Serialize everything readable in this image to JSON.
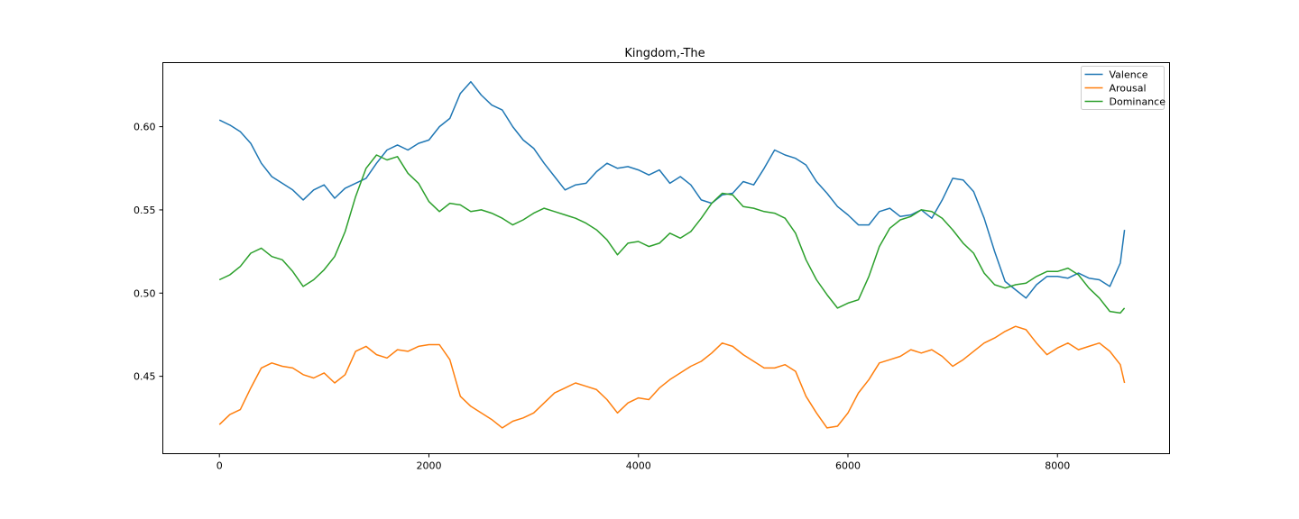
{
  "chart_data": {
    "type": "line",
    "title": "Kingdom,-The",
    "xlabel": "",
    "ylabel": "",
    "xlim": [
      -540,
      9070
    ],
    "ylim": [
      0.4035,
      0.6385
    ],
    "x_ticks": [
      0,
      2000,
      4000,
      6000,
      8000
    ],
    "x_tick_labels": [
      "0",
      "2000",
      "4000",
      "6000",
      "8000"
    ],
    "y_ticks": [
      0.45,
      0.5,
      0.55,
      0.6
    ],
    "y_tick_labels": [
      "0.45",
      "0.50",
      "0.55",
      "0.60"
    ],
    "grid": false,
    "legend_position": "top-right",
    "series": [
      {
        "name": "Valence",
        "color": "#1f77b4",
        "x": [
          0,
          100,
          200,
          300,
          400,
          500,
          600,
          700,
          800,
          900,
          1000,
          1100,
          1200,
          1300,
          1400,
          1500,
          1600,
          1700,
          1800,
          1900,
          2000,
          2100,
          2200,
          2300,
          2400,
          2500,
          2600,
          2700,
          2800,
          2900,
          3000,
          3100,
          3200,
          3300,
          3400,
          3500,
          3600,
          3700,
          3800,
          3900,
          4000,
          4100,
          4200,
          4300,
          4400,
          4500,
          4600,
          4700,
          4800,
          4900,
          5000,
          5100,
          5200,
          5300,
          5400,
          5500,
          5600,
          5700,
          5800,
          5900,
          6000,
          6100,
          6200,
          6300,
          6400,
          6500,
          6600,
          6700,
          6800,
          6900,
          7000,
          7100,
          7200,
          7300,
          7400,
          7500,
          7600,
          7700,
          7800,
          7900,
          8000,
          8100,
          8200,
          8300,
          8400,
          8500,
          8600,
          8640
        ],
        "y": [
          0.604,
          0.601,
          0.597,
          0.59,
          0.578,
          0.57,
          0.566,
          0.562,
          0.556,
          0.562,
          0.565,
          0.557,
          0.563,
          0.566,
          0.569,
          0.578,
          0.586,
          0.589,
          0.586,
          0.59,
          0.592,
          0.6,
          0.605,
          0.62,
          0.627,
          0.619,
          0.613,
          0.61,
          0.6,
          0.592,
          0.587,
          0.578,
          0.57,
          0.562,
          0.565,
          0.566,
          0.573,
          0.578,
          0.575,
          0.576,
          0.574,
          0.571,
          0.574,
          0.566,
          0.57,
          0.565,
          0.556,
          0.554,
          0.559,
          0.56,
          0.567,
          0.565,
          0.575,
          0.586,
          0.583,
          0.581,
          0.577,
          0.567,
          0.56,
          0.552,
          0.547,
          0.541,
          0.541,
          0.549,
          0.551,
          0.546,
          0.547,
          0.55,
          0.545,
          0.556,
          0.569,
          0.568,
          0.561,
          0.545,
          0.525,
          0.507,
          0.502,
          0.497,
          0.505,
          0.51,
          0.51,
          0.509,
          0.512,
          0.509,
          0.508,
          0.504,
          0.518,
          0.538
        ]
      },
      {
        "name": "Arousal",
        "color": "#ff7f0e",
        "x": [
          0,
          100,
          200,
          300,
          400,
          500,
          600,
          700,
          800,
          900,
          1000,
          1100,
          1200,
          1300,
          1400,
          1500,
          1600,
          1700,
          1800,
          1900,
          2000,
          2100,
          2200,
          2300,
          2400,
          2500,
          2600,
          2700,
          2800,
          2900,
          3000,
          3100,
          3200,
          3300,
          3400,
          3500,
          3600,
          3700,
          3800,
          3900,
          4000,
          4100,
          4200,
          4300,
          4400,
          4500,
          4600,
          4700,
          4800,
          4900,
          5000,
          5100,
          5200,
          5300,
          5400,
          5500,
          5600,
          5700,
          5800,
          5900,
          6000,
          6100,
          6200,
          6300,
          6400,
          6500,
          6600,
          6700,
          6800,
          6900,
          7000,
          7100,
          7200,
          7300,
          7400,
          7500,
          7600,
          7700,
          7800,
          7900,
          8000,
          8100,
          8200,
          8300,
          8400,
          8500,
          8600,
          8640
        ],
        "y": [
          0.421,
          0.427,
          0.43,
          0.443,
          0.455,
          0.458,
          0.456,
          0.455,
          0.451,
          0.449,
          0.452,
          0.446,
          0.451,
          0.465,
          0.468,
          0.463,
          0.461,
          0.466,
          0.465,
          0.468,
          0.469,
          0.469,
          0.46,
          0.438,
          0.432,
          0.428,
          0.424,
          0.419,
          0.423,
          0.425,
          0.428,
          0.434,
          0.44,
          0.443,
          0.446,
          0.444,
          0.442,
          0.436,
          0.428,
          0.434,
          0.437,
          0.436,
          0.443,
          0.448,
          0.452,
          0.456,
          0.459,
          0.464,
          0.47,
          0.468,
          0.463,
          0.459,
          0.455,
          0.455,
          0.457,
          0.453,
          0.438,
          0.428,
          0.419,
          0.42,
          0.428,
          0.44,
          0.448,
          0.458,
          0.46,
          0.462,
          0.466,
          0.464,
          0.466,
          0.462,
          0.456,
          0.46,
          0.465,
          0.47,
          0.473,
          0.477,
          0.48,
          0.478,
          0.47,
          0.463,
          0.467,
          0.47,
          0.466,
          0.468,
          0.47,
          0.465,
          0.457,
          0.446
        ]
      },
      {
        "name": "Dominance",
        "color": "#2ca02c",
        "x": [
          0,
          100,
          200,
          300,
          400,
          500,
          600,
          700,
          800,
          900,
          1000,
          1100,
          1200,
          1300,
          1400,
          1500,
          1600,
          1700,
          1800,
          1900,
          2000,
          2100,
          2200,
          2300,
          2400,
          2500,
          2600,
          2700,
          2800,
          2900,
          3000,
          3100,
          3200,
          3300,
          3400,
          3500,
          3600,
          3700,
          3800,
          3900,
          4000,
          4100,
          4200,
          4300,
          4400,
          4500,
          4600,
          4700,
          4800,
          4900,
          5000,
          5100,
          5200,
          5300,
          5400,
          5500,
          5600,
          5700,
          5800,
          5900,
          6000,
          6100,
          6200,
          6300,
          6400,
          6500,
          6600,
          6700,
          6800,
          6900,
          7000,
          7100,
          7200,
          7300,
          7400,
          7500,
          7600,
          7700,
          7800,
          7900,
          8000,
          8100,
          8200,
          8300,
          8400,
          8500,
          8600,
          8640
        ],
        "y": [
          0.508,
          0.511,
          0.516,
          0.524,
          0.527,
          0.522,
          0.52,
          0.513,
          0.504,
          0.508,
          0.514,
          0.522,
          0.537,
          0.558,
          0.575,
          0.583,
          0.58,
          0.582,
          0.572,
          0.566,
          0.555,
          0.549,
          0.554,
          0.553,
          0.549,
          0.55,
          0.548,
          0.545,
          0.541,
          0.544,
          0.548,
          0.551,
          0.549,
          0.547,
          0.545,
          0.542,
          0.538,
          0.532,
          0.523,
          0.53,
          0.531,
          0.528,
          0.53,
          0.536,
          0.533,
          0.537,
          0.545,
          0.554,
          0.56,
          0.559,
          0.552,
          0.551,
          0.549,
          0.548,
          0.545,
          0.536,
          0.52,
          0.508,
          0.499,
          0.491,
          0.494,
          0.496,
          0.51,
          0.528,
          0.539,
          0.544,
          0.546,
          0.55,
          0.549,
          0.545,
          0.538,
          0.53,
          0.524,
          0.512,
          0.505,
          0.503,
          0.505,
          0.506,
          0.51,
          0.513,
          0.513,
          0.515,
          0.511,
          0.503,
          0.497,
          0.489,
          0.488,
          0.491
        ]
      }
    ]
  }
}
